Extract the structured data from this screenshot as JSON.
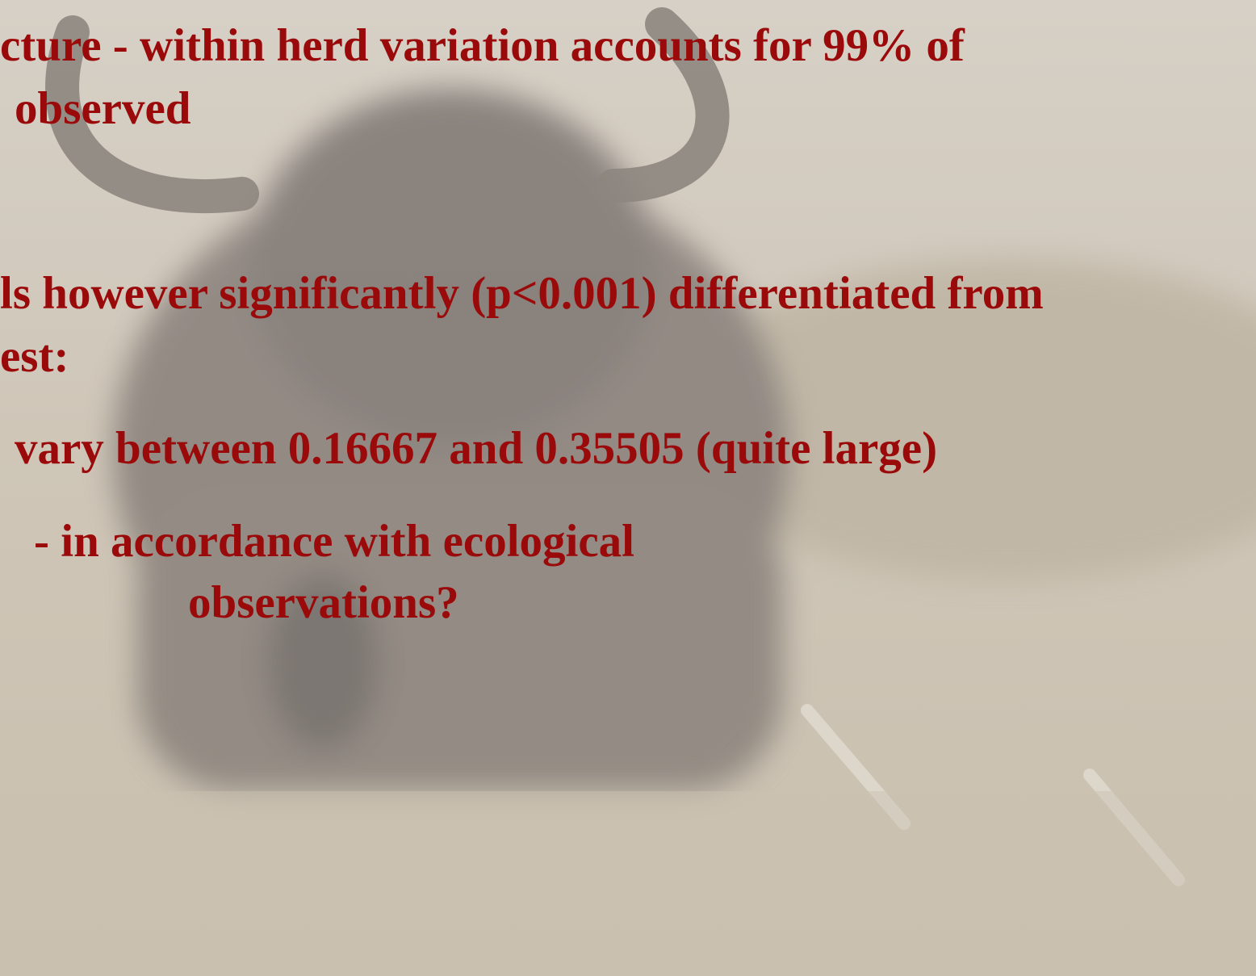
{
  "slide": {
    "lines": [
      "cture - within herd variation accounts for 99% of",
      "observed",
      "ls however significantly (p<0.001) differentiated from",
      "est:",
      "vary between 0.16667 and 0.35505 (quite large)",
      "- in accordance with ecological",
      "observations?"
    ]
  }
}
